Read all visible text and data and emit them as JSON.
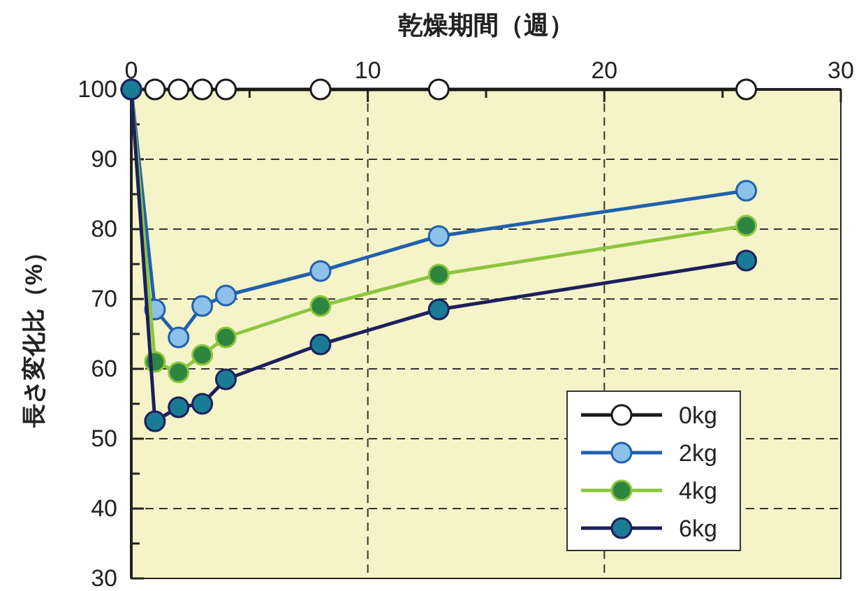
{
  "chart_data": {
    "type": "line",
    "xlabel": "乾燥期間（週）",
    "ylabel": "長さ変化比（%）",
    "x": [
      0,
      1,
      2,
      3,
      4,
      8,
      13,
      26
    ],
    "xlim": [
      0,
      30
    ],
    "xticks": [
      0,
      {
        "value": 5,
        "label": null
      },
      10,
      {
        "value": 15,
        "label": null
      },
      20,
      {
        "value": 25,
        "label": null
      },
      30
    ],
    "ylim": [
      30,
      100
    ],
    "yticks": [
      30,
      {
        "value": 35,
        "label": null
      },
      40,
      {
        "value": 45,
        "label": null
      },
      50,
      {
        "value": 55,
        "label": null
      },
      60,
      {
        "value": 65,
        "label": null
      },
      70,
      {
        "value": 75,
        "label": null
      },
      80,
      {
        "value": 85,
        "label": null
      },
      90,
      {
        "value": 95,
        "label": null
      },
      100
    ],
    "grid": true,
    "legend": "bottom right",
    "marker": "circle",
    "line_style": "solid",
    "series": [
      {
        "name": "0kg",
        "color": "#1a1a1a",
        "colors": [
          "#ffffff",
          "#ffffff",
          "#ffffff",
          "#ffffff",
          "#ffffff",
          "#ffffff",
          "#ffffff",
          "#ffffff"
        ],
        "values": [
          100,
          100,
          100,
          100,
          100,
          100,
          100,
          100
        ]
      },
      {
        "name": "2kg",
        "color": "#2160ad",
        "colors": [
          "#8cc2ea",
          "#8cc2ea",
          "#8cc2ea",
          "#8cc2ea",
          "#8cc2ea",
          "#8cc2ea",
          "#8cc2ea",
          "#8cc2ea"
        ],
        "values": [
          100,
          68.5,
          64.5,
          69,
          70.5,
          74,
          79,
          85.5
        ]
      },
      {
        "name": "4kg",
        "color": "#8cc63e",
        "colors": [
          "#2e8540",
          "#2e8540",
          "#2e8540",
          "#2e8540",
          "#2e8540",
          "#2e8540",
          "#2e8540",
          "#2e8540"
        ],
        "values": [
          100,
          61,
          59.5,
          62,
          64.5,
          69,
          73.5,
          80.5
        ]
      },
      {
        "name": "6kg",
        "color": "#1e1f5c",
        "colors": [
          "#1a7b95",
          "#1a7b95",
          "#1a7b95",
          "#1a7b95",
          "#1a7b95",
          "#1a7b95",
          "#1a7b95",
          "#1a7b95"
        ],
        "values": [
          100,
          52.5,
          54.5,
          55,
          58.5,
          63.5,
          68.5,
          75.5
        ]
      }
    ]
  }
}
